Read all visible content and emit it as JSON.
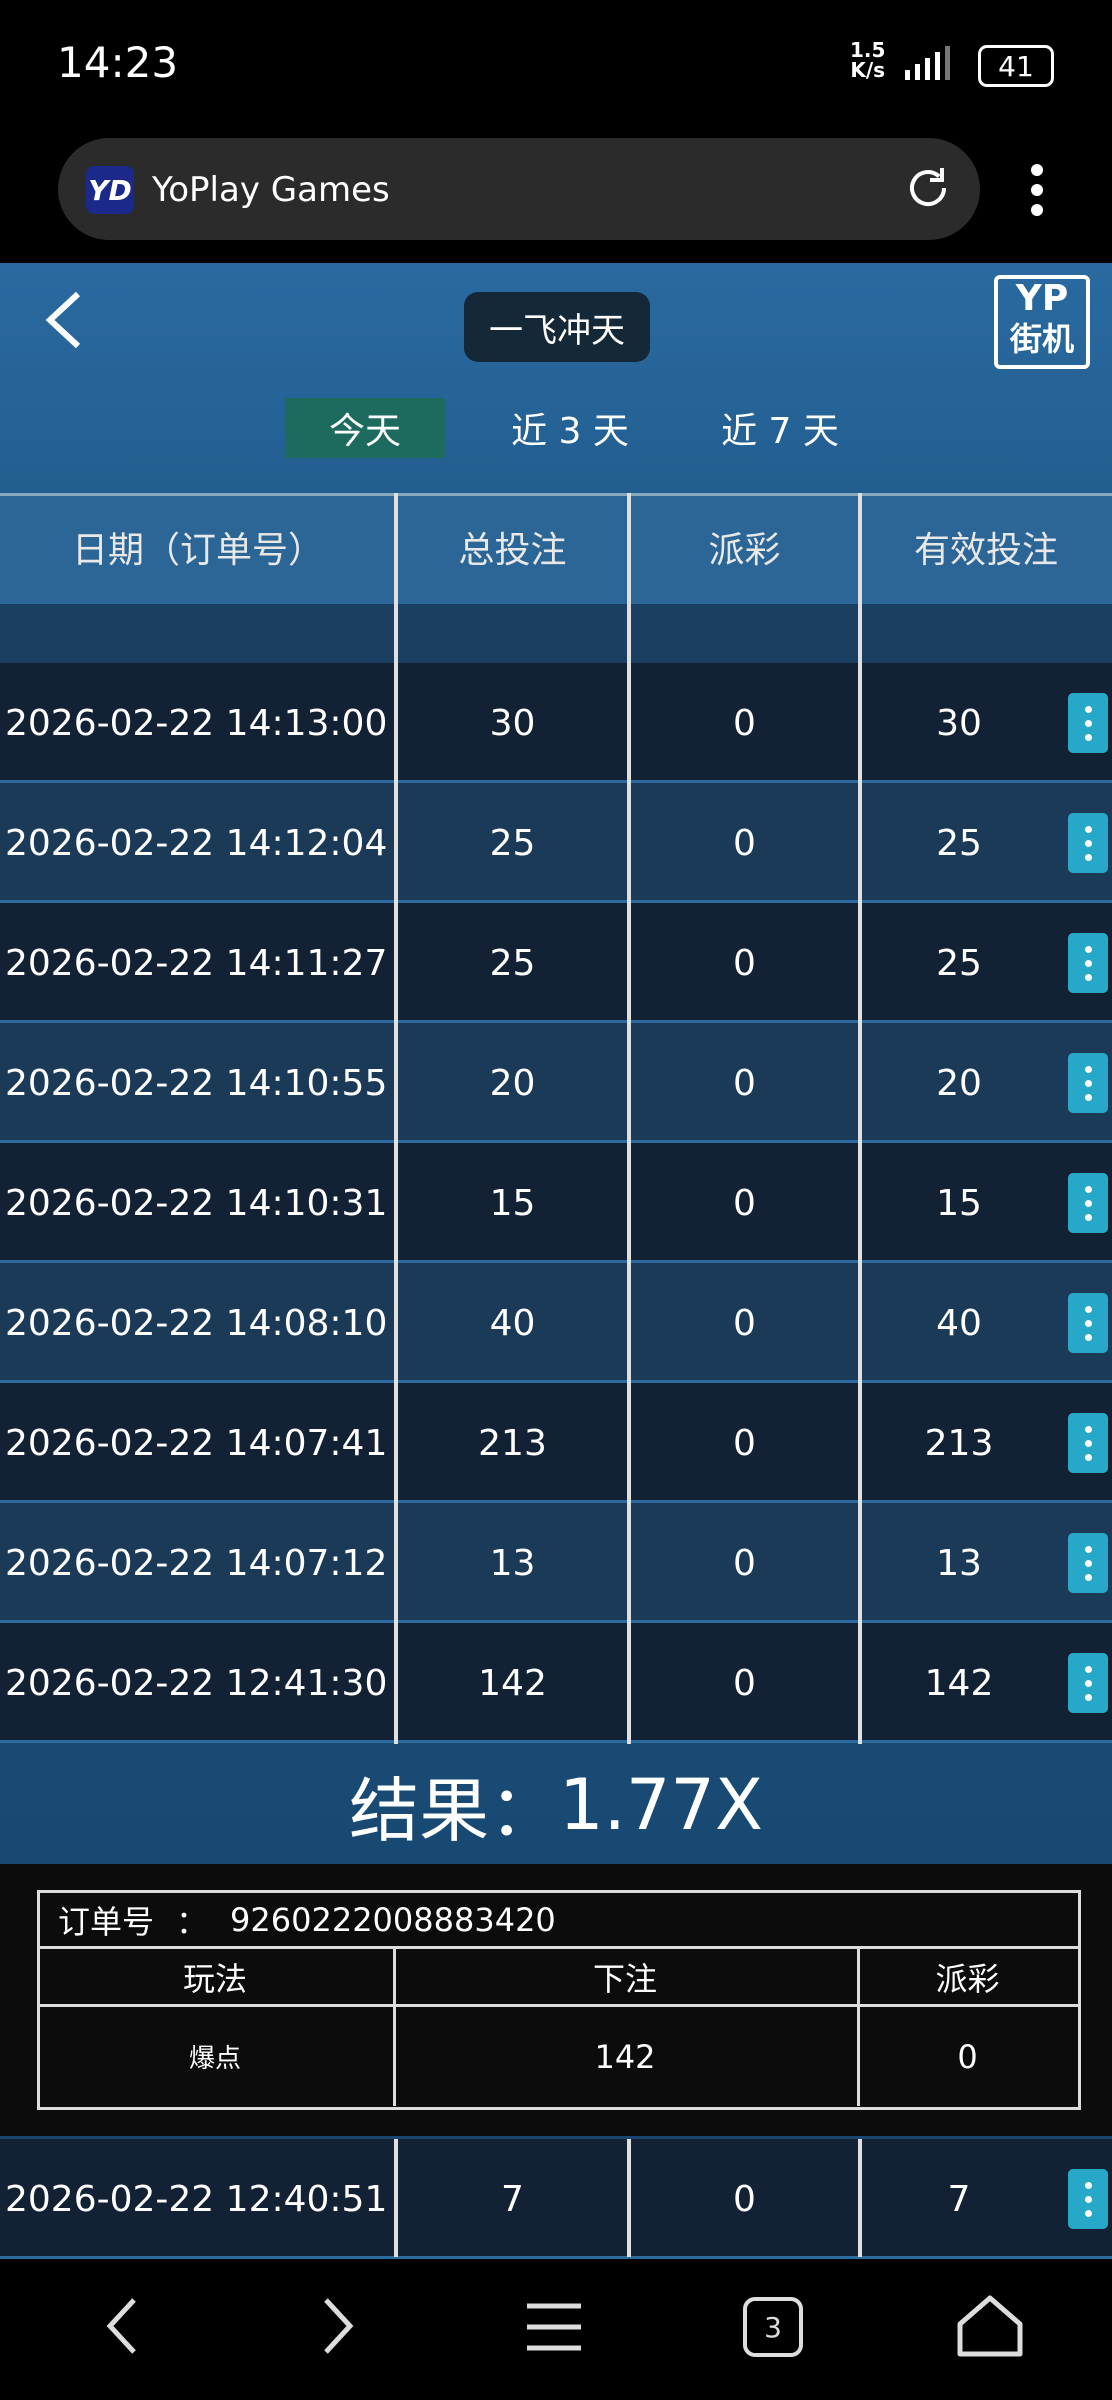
{
  "status_bar": {
    "time": "14:23",
    "net_speed": "1.5",
    "net_unit": "K/s",
    "battery": "41"
  },
  "browser": {
    "logo": "YD",
    "title": "YoPlay Games"
  },
  "header": {
    "title": "一飞冲天",
    "logo_top": "YP",
    "logo_bottom": "街机",
    "tabs": [
      "今天",
      "近 3 天",
      "近 7 天"
    ]
  },
  "table": {
    "columns": [
      "日期（订单号）",
      "总投注",
      "派彩",
      "有效投注"
    ],
    "rows": [
      [
        "2026-02-22 14:13:00",
        30,
        0,
        30
      ],
      [
        "2026-02-22 14:12:04",
        25,
        0,
        25
      ],
      [
        "2026-02-22 14:11:27",
        25,
        0,
        25
      ],
      [
        "2026-02-22 14:10:55",
        20,
        0,
        20
      ],
      [
        "2026-02-22 14:10:31",
        15,
        0,
        15
      ],
      [
        "2026-02-22 14:08:10",
        40,
        0,
        40
      ],
      [
        "2026-02-22 14:07:41",
        213,
        0,
        213
      ],
      [
        "2026-02-22 14:07:12",
        13,
        0,
        13
      ],
      [
        "2026-02-22 12:41:30",
        142,
        0,
        142
      ]
    ]
  },
  "result": {
    "label": "结果：",
    "value": "1.77X"
  },
  "detail": {
    "order_label": "订单号",
    "order_sep": "：",
    "order_no": "9260222008883420",
    "columns": [
      "玩法",
      "下注",
      "派彩"
    ],
    "row": [
      "爆点",
      142,
      0
    ]
  },
  "next_rows": [
    [
      "2026-02-22 12:40:51",
      7,
      0,
      7
    ]
  ],
  "nav": {
    "tab_count": "3"
  }
}
